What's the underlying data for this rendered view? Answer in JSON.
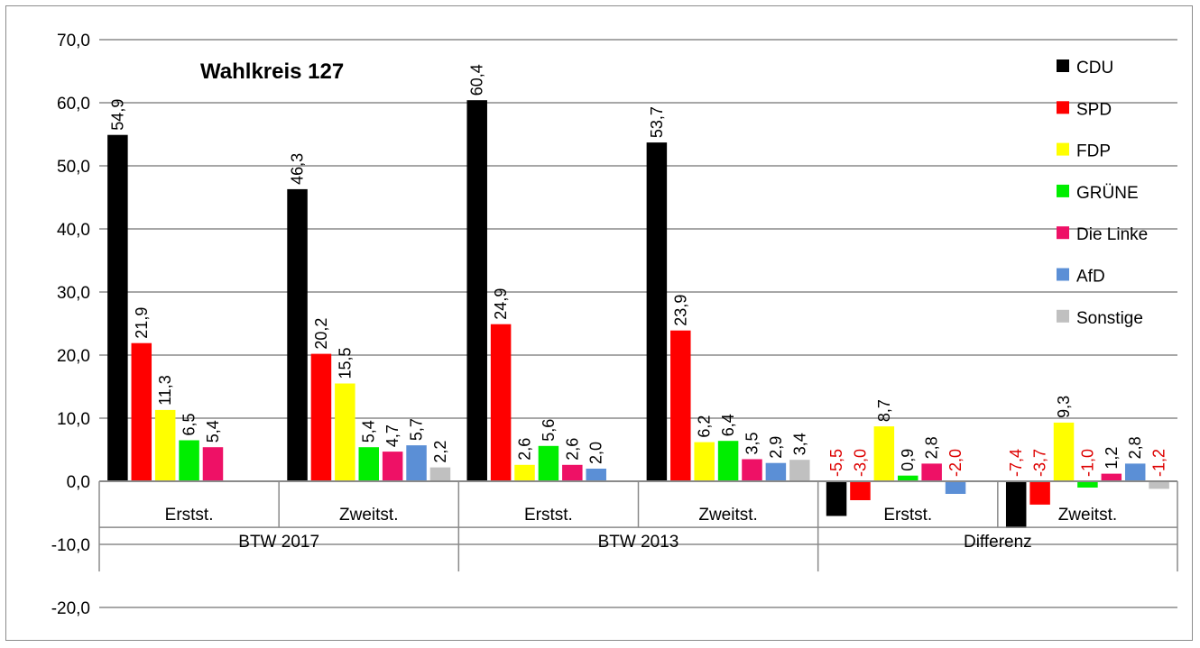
{
  "chart_data": {
    "type": "bar",
    "title": "Wahlkreis 127",
    "ylim": [
      -20,
      70
    ],
    "yticks": [
      "70,0",
      "60,0",
      "50,0",
      "40,0",
      "30,0",
      "20,0",
      "10,0",
      "0,0",
      "-10,0",
      "-20,0"
    ],
    "grid": true,
    "legend_position": "top-right",
    "groups": [
      {
        "name": "BTW 2017",
        "categories": [
          "Erstst.",
          "Zweitst."
        ]
      },
      {
        "name": "BTW 2013",
        "categories": [
          "Erstst.",
          "Zweitst."
        ]
      },
      {
        "name": "Differenz",
        "categories": [
          "Erstst.",
          "Zweitst."
        ]
      }
    ],
    "series": [
      {
        "name": "CDU",
        "color": "#000000",
        "values": [
          54.9,
          46.3,
          60.4,
          53.7,
          -5.5,
          -7.4
        ],
        "labels": [
          "54,9",
          "46,3",
          "60,4",
          "53,7",
          "-5,5",
          "-7,4"
        ]
      },
      {
        "name": "SPD",
        "color": "#ff0000",
        "values": [
          21.9,
          20.2,
          24.9,
          23.9,
          -3.0,
          -3.7
        ],
        "labels": [
          "21,9",
          "20,2",
          "24,9",
          "23,9",
          "-3,0",
          "-3,7"
        ]
      },
      {
        "name": "FDP",
        "color": "#ffff00",
        "values": [
          11.3,
          15.5,
          2.6,
          6.2,
          8.7,
          9.3
        ],
        "labels": [
          "11,3",
          "15,5",
          "2,6",
          "6,2",
          "8,7",
          "9,3"
        ]
      },
      {
        "name": "GRÜNE",
        "color": "#00ee00",
        "values": [
          6.5,
          5.4,
          5.6,
          6.4,
          0.9,
          -1.0
        ],
        "labels": [
          "6,5",
          "5,4",
          "5,6",
          "6,4",
          "0,9",
          "-1,0"
        ]
      },
      {
        "name": "Die Linke",
        "color": "#ee1166",
        "values": [
          5.4,
          4.7,
          2.6,
          3.5,
          2.8,
          1.2
        ],
        "labels": [
          "5,4",
          "4,7",
          "2,6",
          "3,5",
          "2,8",
          "1,2"
        ]
      },
      {
        "name": "AfD",
        "color": "#5b8fd6",
        "values": [
          null,
          5.7,
          2.0,
          2.9,
          -2.0,
          2.8
        ],
        "labels": [
          "",
          "5,7",
          "2,0",
          "2,9",
          "-2,0",
          "2,8"
        ]
      },
      {
        "name": "Sonstige",
        "color": "#c0c0c0",
        "values": [
          null,
          2.2,
          null,
          3.4,
          null,
          -1.2
        ],
        "labels": [
          "",
          "2,2",
          "",
          "3,4",
          "",
          "-1,2"
        ]
      }
    ],
    "negative_label_color": "#dd0000"
  }
}
